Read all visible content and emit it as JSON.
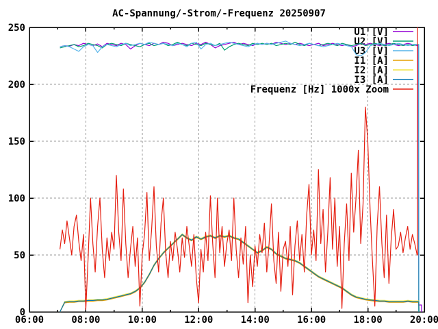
{
  "window": {
    "title": "AC-Spannung/-Strom/-Frequenz 20250907"
  },
  "chart_data": {
    "type": "line",
    "title": "AC-Spannung/-Strom/-Frequenz 20250907",
    "xlabel": "",
    "ylabel": "",
    "xlim_hours": [
      6,
      20
    ],
    "ylim": [
      0,
      250
    ],
    "grid": {
      "x_hours": [
        8,
        10,
        12,
        14,
        16,
        18
      ],
      "y_values": [
        50,
        100,
        150,
        200
      ],
      "style": "dashed-gray"
    },
    "x_axis": {
      "major_hours": [
        6,
        8,
        10,
        12,
        14,
        16,
        18,
        20
      ],
      "major_labels": [
        "06:00",
        "08:00",
        "10:00",
        "12:00",
        "14:00",
        "16:00",
        "18:00",
        "20:00"
      ],
      "minor_hours": [
        7,
        9,
        11,
        13,
        15,
        17,
        19
      ]
    },
    "y_axis": {
      "major_values": [
        0,
        50,
        100,
        150,
        200,
        250
      ],
      "major_labels": [
        "0",
        "50",
        "100",
        "150",
        "200",
        "250"
      ]
    },
    "legend": {
      "position": "top-right-inside",
      "entries": [
        {
          "label": "U1 [V]",
          "color": "#9400D3"
        },
        {
          "label": "U2 [V]",
          "color": "#009E73"
        },
        {
          "label": "U3 [V]",
          "color": "#56B4E9"
        },
        {
          "label": "I1 [A]",
          "color": "#E69F00"
        },
        {
          "label": "I2 [A]",
          "color": "#F0E442"
        },
        {
          "label": "I3 [A]",
          "color": "#0072B2"
        },
        {
          "label": "Frequenz [Hz] 1000x Zoom",
          "color": "#E51E10"
        }
      ]
    },
    "series": [
      {
        "name": "U1 [V]",
        "color": "#9400D3",
        "t0": 7.083,
        "dt": 0.1667,
        "values": [
          233,
          234,
          233.5,
          235,
          234,
          236,
          235,
          234,
          235.5,
          233,
          236,
          235,
          234,
          236,
          235,
          231,
          234,
          236,
          235,
          234,
          236,
          235,
          237,
          236,
          234,
          235,
          236,
          235,
          234,
          236,
          235,
          237,
          235,
          232,
          234,
          235,
          236,
          237,
          235,
          236,
          235,
          234,
          236,
          235,
          236,
          235,
          237,
          236,
          235,
          236,
          235,
          236,
          235,
          234,
          235,
          236,
          234,
          235,
          236,
          235,
          234,
          235,
          233,
          234,
          236,
          235,
          236,
          235,
          234,
          235,
          236,
          235,
          234,
          235,
          236,
          235,
          234
        ],
        "tail": [
          [
            19.78,
            235
          ],
          [
            19.8,
            6
          ],
          [
            19.9,
            6
          ],
          [
            19.9,
            0
          ]
        ]
      },
      {
        "name": "U2 [V]",
        "color": "#009E73",
        "t0": 7.083,
        "dt": 0.1667,
        "values": [
          232,
          233,
          234,
          235,
          233,
          234,
          236,
          235,
          234,
          232,
          235,
          236,
          235,
          234,
          236,
          235,
          234,
          233,
          235,
          236,
          234,
          235,
          236,
          234,
          235,
          237,
          235,
          234,
          236,
          235,
          234,
          236,
          235,
          234,
          236,
          230,
          233,
          235,
          236,
          235,
          234,
          236,
          235,
          236,
          235,
          236,
          234,
          235,
          236,
          235,
          237,
          235,
          234,
          236,
          235,
          234,
          235,
          236,
          235,
          234,
          236,
          235,
          234,
          235,
          236,
          234,
          235,
          236,
          235,
          234,
          235,
          236,
          235,
          234,
          235,
          234,
          235
        ],
        "tail": [
          [
            19.8,
            235
          ],
          [
            19.8,
            0
          ]
        ]
      },
      {
        "name": "U3 [V]",
        "color": "#56B4E9",
        "t0": 7.083,
        "dt": 0.1667,
        "values": [
          233,
          234,
          233,
          231,
          229,
          233,
          235,
          234,
          228,
          233,
          235,
          234,
          233,
          235,
          236,
          234,
          235,
          236,
          235,
          237,
          236,
          235,
          236,
          235,
          234,
          236,
          235,
          233,
          236,
          237,
          231,
          235,
          236,
          234,
          235,
          236,
          237,
          236,
          235,
          234,
          233,
          235,
          236,
          235,
          236,
          235,
          236,
          237,
          238,
          236,
          235,
          234,
          235,
          236,
          235,
          234,
          233,
          234,
          235,
          236,
          235,
          234,
          233,
          226,
          225,
          228,
          234,
          235,
          236,
          235,
          234,
          235,
          236,
          235,
          234,
          235,
          235
        ],
        "tail": [
          [
            19.8,
            235
          ],
          [
            19.81,
            0
          ]
        ]
      },
      {
        "name": "I1 [A]",
        "color": "#E69F00",
        "t0": 7.083,
        "dt": 0.1667,
        "values": [
          0,
          7.9,
          8.4,
          8.4,
          8.9,
          8.9,
          9.4,
          9.4,
          9.9,
          9.9,
          10.4,
          11.4,
          12.4,
          13.4,
          14.4,
          15.4,
          17.4,
          20.4,
          25.4,
          32.4,
          40.4,
          46.4,
          51.4,
          55.4,
          59.4,
          63.4,
          67.4,
          64.4,
          62.4,
          65.4,
          63.4,
          65.4,
          66.4,
          64.4,
          66.4,
          65.4,
          66.4,
          64.4,
          63.4,
          60.4,
          57.4,
          54.4,
          51.4,
          53.4,
          56.4,
          54.4,
          50.4,
          48.4,
          46.4,
          45.4,
          44.4,
          42.4,
          39.4,
          36.4,
          33.4,
          30.4,
          28.4,
          26.4,
          24.4,
          22.4,
          20.4,
          17.4,
          14.4,
          12.4,
          11.4,
          10.4,
          9.9,
          9.4,
          8.9,
          8.9,
          8.4,
          8.4,
          8.4,
          8.4,
          8.9,
          8.4,
          8.4
        ],
        "tail": [
          [
            19.8,
            8.4
          ],
          [
            19.81,
            0
          ]
        ]
      },
      {
        "name": "I2 [A]",
        "color": "#F0E442",
        "t0": 7.083,
        "dt": 0.1667,
        "values": [
          0,
          9.1,
          9.6,
          9.6,
          10.1,
          10.1,
          10.6,
          10.6,
          11.1,
          11.1,
          11.6,
          12.6,
          13.6,
          14.6,
          15.6,
          16.6,
          18.6,
          21.6,
          26.6,
          33.6,
          41.6,
          47.6,
          52.6,
          56.6,
          60.6,
          64.6,
          68.6,
          65.6,
          63.6,
          66.6,
          64.6,
          66.6,
          67.6,
          65.6,
          67.6,
          66.6,
          67.6,
          65.6,
          64.6,
          61.6,
          58.6,
          55.6,
          52.6,
          54.6,
          57.6,
          55.6,
          51.6,
          49.6,
          47.6,
          46.6,
          45.6,
          43.6,
          40.6,
          37.6,
          34.6,
          31.6,
          29.6,
          27.6,
          25.6,
          23.6,
          21.6,
          18.6,
          15.6,
          13.6,
          12.6,
          11.6,
          11.1,
          10.6,
          10.1,
          10.1,
          9.6,
          9.6,
          9.6,
          9.6,
          10.1,
          9.6,
          9.6
        ],
        "tail": [
          [
            19.8,
            9.6
          ],
          [
            19.81,
            0
          ]
        ]
      },
      {
        "name": "I3 [A]",
        "color": "#0072B2",
        "t0": 7.083,
        "dt": 0.1667,
        "values": [
          0,
          8.5,
          9,
          9,
          9.5,
          9.5,
          10,
          10,
          10.5,
          10.5,
          11,
          12,
          13,
          14,
          15,
          16,
          18,
          21,
          26,
          33,
          41,
          47,
          52,
          56,
          60,
          64,
          68,
          65,
          63,
          66,
          64,
          66,
          67,
          65,
          67,
          66,
          67,
          65,
          64,
          61,
          58,
          55,
          52,
          54,
          57,
          55,
          51,
          49,
          47,
          46,
          45,
          43,
          40,
          37,
          34,
          31,
          29,
          27,
          25,
          23,
          21,
          18,
          15,
          13,
          12,
          11,
          10.5,
          10,
          9.5,
          9.5,
          9,
          9,
          9,
          9,
          9.5,
          9,
          9
        ],
        "tail": [
          [
            19.8,
            9
          ],
          [
            19.81,
            0
          ]
        ]
      },
      {
        "name": "Frequenz [Hz] 1000x Zoom",
        "color": "#E51E10",
        "t0": 7.083,
        "dt": 0.0833,
        "values": [
          55,
          72,
          60,
          80,
          65,
          50,
          75,
          85,
          62,
          45,
          68,
          2,
          48,
          100,
          60,
          35,
          75,
          100,
          55,
          30,
          65,
          45,
          70,
          55,
          120,
          70,
          45,
          108,
          60,
          30,
          55,
          75,
          40,
          65,
          5,
          50,
          68,
          105,
          45,
          72,
          110,
          58,
          35,
          78,
          100,
          52,
          30,
          62,
          45,
          70,
          55,
          35,
          65,
          48,
          75,
          58,
          40,
          68,
          30,
          8,
          55,
          35,
          70,
          45,
          102,
          60,
          30,
          100,
          52,
          75,
          40,
          60,
          72,
          45,
          100,
          55,
          30,
          65,
          42,
          75,
          8,
          50,
          22,
          58,
          40,
          68,
          52,
          78,
          35,
          60,
          95,
          45,
          25,
          70,
          18,
          55,
          62,
          40,
          75,
          15,
          58,
          80,
          45,
          68,
          35,
          85,
          112,
          50,
          72,
          45,
          125,
          60,
          90,
          35,
          70,
          118,
          55,
          100,
          40,
          75,
          3,
          60,
          95,
          45,
          122,
          70,
          100,
          142,
          60,
          95,
          180,
          150,
          90,
          45,
          5,
          75,
          110,
          60,
          30,
          85,
          25,
          65,
          90,
          55,
          58,
          70,
          52,
          65,
          75,
          55,
          68,
          60,
          50
        ],
        "tail": [
          [
            19.76,
            50
          ],
          [
            19.76,
            250
          ]
        ]
      }
    ],
    "colors": {
      "background": "#ffffff",
      "border": "#000000",
      "grid": "#9a9a9a",
      "text": "#000000"
    }
  }
}
